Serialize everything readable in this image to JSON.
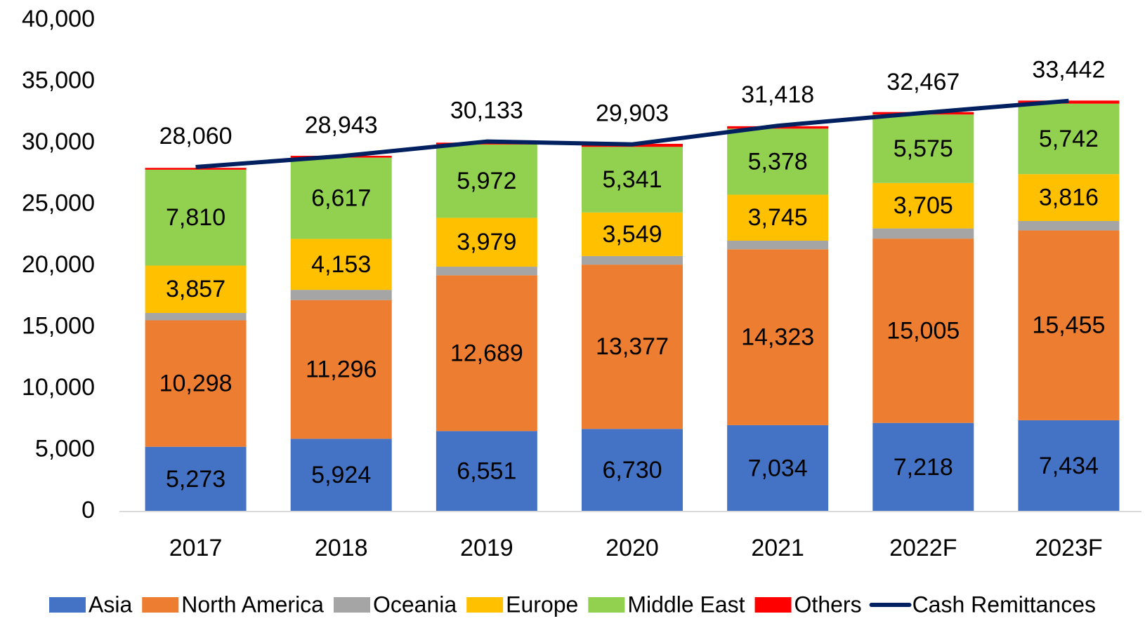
{
  "chart_data": {
    "type": "bar",
    "stacked": true,
    "categories": [
      "2017",
      "2018",
      "2019",
      "2020",
      "2021",
      "2022F",
      "2023F"
    ],
    "ylim": [
      0,
      40000
    ],
    "yticks": [
      0,
      {
        "value": 5000,
        "label": "5,000"
      },
      {
        "value": 10000,
        "label": "10,000"
      },
      {
        "value": 15000,
        "label": "15,000"
      },
      {
        "value": 20000,
        "label": "20,000"
      },
      {
        "value": 25000,
        "label": "25,000"
      },
      {
        "value": 30000,
        "label": "30,000"
      },
      {
        "value": 35000,
        "label": "35,000"
      },
      {
        "value": 40000,
        "label": "40,000"
      }
    ],
    "grid": false,
    "legend": "bottom",
    "series": [
      {
        "name": "Asia",
        "color": "#4472c4",
        "values": [
          5273,
          5924,
          6551,
          6730,
          7034,
          7218,
          7434
        ],
        "value_labels": [
          "5,273",
          "5,924",
          "6,551",
          "6,730",
          "7,034",
          "7,218",
          "7,434"
        ]
      },
      {
        "name": "North America",
        "color": "#ed7d31",
        "values": [
          10298,
          11296,
          12689,
          13377,
          14323,
          15005,
          15455
        ],
        "value_labels": [
          "10,298",
          "11,296",
          "12,689",
          "13,377",
          "14,323",
          "15,005",
          "15,455"
        ]
      },
      {
        "name": "Oceania",
        "color": "#a5a5a5",
        "values": [
          600,
          830,
          700,
          700,
          700,
          830,
          770
        ]
      },
      {
        "name": "Europe",
        "color": "#ffc000",
        "values": [
          3857,
          4153,
          3979,
          3549,
          3745,
          3705,
          3816
        ],
        "value_labels": [
          "3,857",
          "4,153",
          "3,979",
          "3,549",
          "3,745",
          "3,705",
          "3,816"
        ]
      },
      {
        "name": "Middle East",
        "color": "#92d050",
        "values": [
          7810,
          6617,
          5972,
          5341,
          5378,
          5575,
          5742
        ],
        "value_labels": [
          "7,810",
          "6,617",
          "5,972",
          "5,341",
          "5,378",
          "5,575",
          "5,742"
        ]
      },
      {
        "name": "Others",
        "color": "#ff0000",
        "values": [
          150,
          150,
          150,
          250,
          200,
          200,
          250
        ]
      },
      {
        "name": "Cash Remittances",
        "type": "line",
        "color": "#002060",
        "values": [
          28060,
          28943,
          30133,
          29903,
          31418,
          32467,
          33442
        ],
        "value_labels": [
          "28,060",
          "28,943",
          "30,133",
          "29,903",
          "31,418",
          "32,467",
          "33,442"
        ]
      }
    ]
  }
}
